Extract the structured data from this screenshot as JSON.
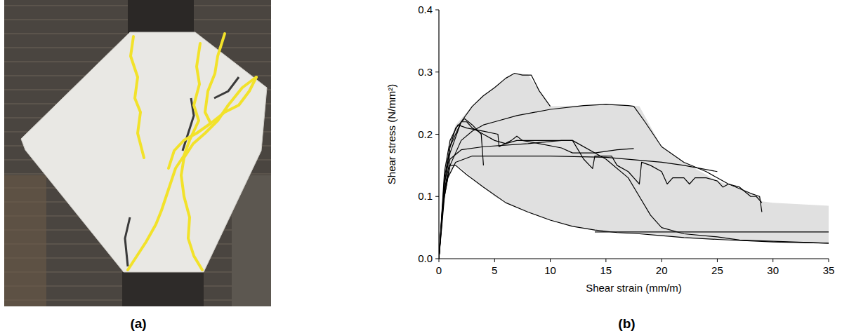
{
  "photo": {
    "label": "(a)"
  },
  "chart_data": {
    "type": "line",
    "title": "(b)",
    "x_label": "Shear strain (mm/m)",
    "y_label": "Shear stress (N/mm²)",
    "xlim": [
      0,
      35
    ],
    "ylim": [
      0,
      0.4
    ],
    "xticks": [
      0,
      5,
      10,
      15,
      20,
      25,
      30,
      35
    ],
    "yticks": [
      {
        "value": 0,
        "label": "0.0"
      },
      {
        "value": 0.1,
        "label": "0.1"
      },
      {
        "value": 0.2,
        "label": "0.2"
      },
      {
        "value": 0.3,
        "label": "0.3"
      },
      {
        "value": 0.4,
        "label": "0.4"
      }
    ],
    "grid": false,
    "envelope": {
      "color": "#e0e0e0",
      "x": [
        0,
        0.5,
        1,
        1.5,
        2,
        3,
        4,
        5,
        6,
        7,
        8,
        9,
        10,
        12,
        14,
        16,
        18,
        20,
        22,
        25,
        28,
        28.8,
        29,
        30,
        35
      ],
      "upper": [
        0,
        0.14,
        0.19,
        0.215,
        0.225,
        0.245,
        0.262,
        0.275,
        0.29,
        0.298,
        0.296,
        0.27,
        0.245,
        0.246,
        0.247,
        0.248,
        0.245,
        0.18,
        0.155,
        0.125,
        0.105,
        0.1,
        0.092,
        0.09,
        0.085
      ],
      "lower": [
        0,
        0.1,
        0.14,
        0.15,
        0.145,
        0.13,
        0.115,
        0.1,
        0.09,
        0.082,
        0.075,
        0.068,
        0.062,
        0.052,
        0.046,
        0.042,
        0.04,
        0.037,
        0.034,
        0.031,
        0.028,
        0.028,
        0.028,
        0.027,
        0.025
      ]
    },
    "series": [
      {
        "color": "#000000",
        "x": [
          0,
          0.5,
          1,
          2,
          3,
          4,
          5,
          6,
          6.8,
          7.5,
          8.3,
          9,
          10
        ],
        "values": [
          0,
          0.12,
          0.17,
          0.22,
          0.245,
          0.262,
          0.275,
          0.29,
          0.298,
          0.295,
          0.295,
          0.27,
          0.245
        ]
      },
      {
        "color": "#000000",
        "x": [
          0,
          0.5,
          1,
          2,
          3,
          4,
          5,
          7,
          10,
          13,
          15,
          17,
          17.5,
          18.5,
          20,
          22,
          24,
          26,
          28,
          28.8,
          29
        ],
        "values": [
          0,
          0.1,
          0.15,
          0.19,
          0.205,
          0.215,
          0.22,
          0.23,
          0.24,
          0.246,
          0.248,
          0.246,
          0.245,
          0.22,
          0.18,
          0.155,
          0.14,
          0.12,
          0.105,
          0.1,
          0.075
        ]
      },
      {
        "color": "#000000",
        "x": [
          0,
          0.5,
          1,
          2,
          2.5,
          3,
          4,
          5,
          6,
          7,
          8,
          10,
          12,
          13,
          13.8,
          14,
          15.5,
          16,
          17,
          18,
          18.2,
          19,
          20,
          20.5,
          21,
          22,
          22.5,
          23,
          24,
          25,
          25.5,
          26,
          27,
          28,
          28.5,
          29
        ],
        "values": [
          0,
          0.13,
          0.18,
          0.22,
          0.22,
          0.21,
          0.2,
          0.19,
          0.185,
          0.19,
          0.19,
          0.19,
          0.19,
          0.16,
          0.145,
          0.165,
          0.165,
          0.15,
          0.14,
          0.12,
          0.155,
          0.15,
          0.14,
          0.12,
          0.13,
          0.13,
          0.12,
          0.13,
          0.13,
          0.125,
          0.115,
          0.12,
          0.115,
          0.1,
          0.1,
          0.09
        ]
      },
      {
        "color": "#000000",
        "x": [
          0,
          0.5,
          1,
          1.5,
          2.3,
          3,
          3.8,
          4
        ],
        "values": [
          0,
          0.12,
          0.18,
          0.21,
          0.225,
          0.215,
          0.2,
          0.15
        ]
      },
      {
        "color": "#000000",
        "x": [
          0,
          0.5,
          1,
          1.7,
          2.5,
          4,
          5.3,
          5.4,
          6.5,
          7,
          7.5,
          9,
          11,
          12,
          14,
          16,
          17.5
        ],
        "values": [
          0,
          0.14,
          0.19,
          0.215,
          0.21,
          0.205,
          0.2,
          0.18,
          0.19,
          0.197,
          0.19,
          0.185,
          0.178,
          0.17,
          0.17,
          0.175,
          0.177
        ]
      },
      {
        "color": "#000000",
        "x": [
          0,
          0.3,
          0.8,
          1.5,
          3,
          5,
          10,
          15,
          20,
          22,
          25
        ],
        "values": [
          0,
          0.08,
          0.13,
          0.155,
          0.165,
          0.165,
          0.165,
          0.163,
          0.155,
          0.15,
          0.14
        ]
      },
      {
        "color": "#000000",
        "x": [
          0,
          0.5,
          1,
          2,
          4,
          8,
          11,
          12,
          15,
          17,
          18,
          19,
          20,
          22,
          25,
          27,
          30,
          35
        ],
        "values": [
          0,
          0.11,
          0.16,
          0.175,
          0.18,
          0.185,
          0.19,
          0.19,
          0.16,
          0.13,
          0.1,
          0.07,
          0.05,
          0.04,
          0.035,
          0.03,
          0.028,
          0.025
        ]
      },
      {
        "color": "#000000",
        "x": [
          0,
          0.4,
          1,
          1.5,
          2.5,
          4,
          6,
          8,
          10,
          12,
          14,
          16,
          18,
          20,
          22,
          25,
          30,
          35
        ],
        "values": [
          0,
          0.1,
          0.15,
          0.15,
          0.135,
          0.115,
          0.09,
          0.075,
          0.062,
          0.052,
          0.046,
          0.042,
          0.04,
          0.037,
          0.034,
          0.031,
          0.027,
          0.025
        ]
      },
      {
        "color": "#000000",
        "x": [
          14,
          35
        ],
        "values": [
          0.043,
          0.043
        ]
      }
    ]
  }
}
